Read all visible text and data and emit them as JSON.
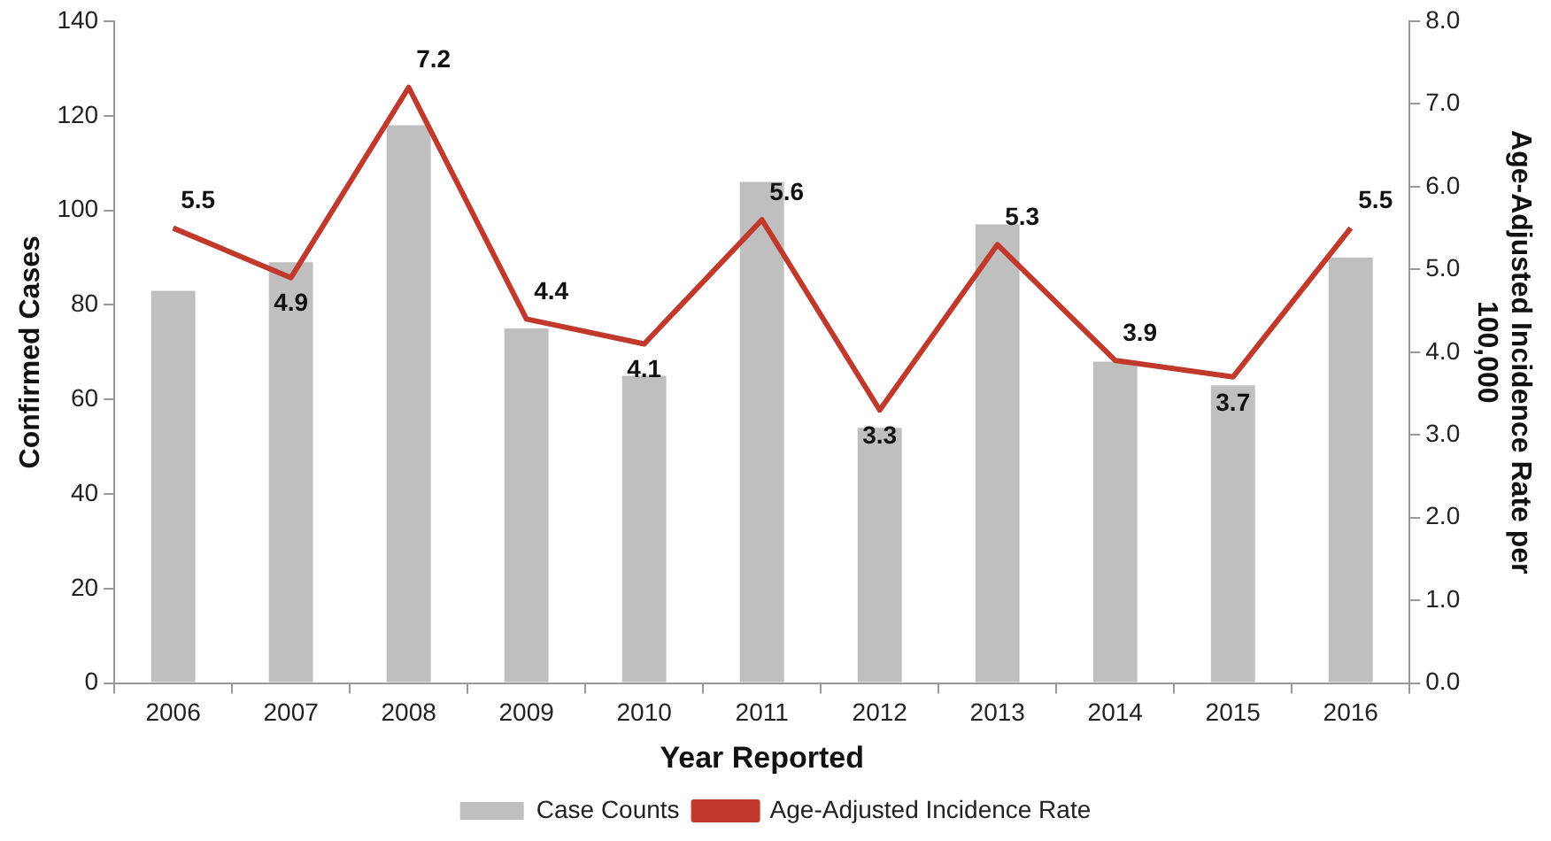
{
  "chart_data": {
    "type": "bar",
    "xlabel": "Year Reported",
    "ylabel": "Confirmed Cases",
    "y2label": "Age-Adjusted Incidence Rate per 100,000",
    "categories": [
      "2006",
      "2007",
      "2008",
      "2009",
      "2010",
      "2011",
      "2012",
      "2013",
      "2014",
      "2015",
      "2016"
    ],
    "series": [
      {
        "name": "Case Counts",
        "color": "#bfbfbf",
        "values": [
          83,
          89,
          118,
          75,
          65,
          106,
          54,
          97,
          68,
          63,
          90
        ]
      },
      {
        "name": "Age-Adjusted Incidence Rate",
        "type": "line",
        "axis": "y2",
        "color": "#c0392b",
        "marker": "none",
        "values": [
          5.5,
          4.9,
          7.2,
          4.4,
          4.1,
          5.6,
          3.3,
          5.3,
          3.9,
          3.7,
          5.5
        ],
        "value_labels": [
          "5.5",
          "4.9",
          "7.2",
          "4.4",
          "4.1",
          "5.6",
          "3.3",
          "5.3",
          "3.9",
          "3.7",
          "5.5"
        ]
      }
    ],
    "ylim": [
      0,
      140
    ],
    "yticks": [
      0,
      20,
      40,
      60,
      80,
      100,
      120,
      140
    ],
    "y2lim": [
      0,
      8
    ],
    "y2ticks": [
      {
        "value": 0,
        "label": "0.0"
      },
      {
        "value": 1,
        "label": "1.0"
      },
      {
        "value": 2,
        "label": "2.0"
      },
      {
        "value": 3,
        "label": "3.0"
      },
      {
        "value": 4,
        "label": "4.0"
      },
      {
        "value": 5,
        "label": "5.0"
      },
      {
        "value": 6,
        "label": "6.0"
      },
      {
        "value": 7,
        "label": "7.0"
      },
      {
        "value": 8,
        "label": "8.0"
      }
    ],
    "grid": false,
    "legend": "bottom"
  }
}
